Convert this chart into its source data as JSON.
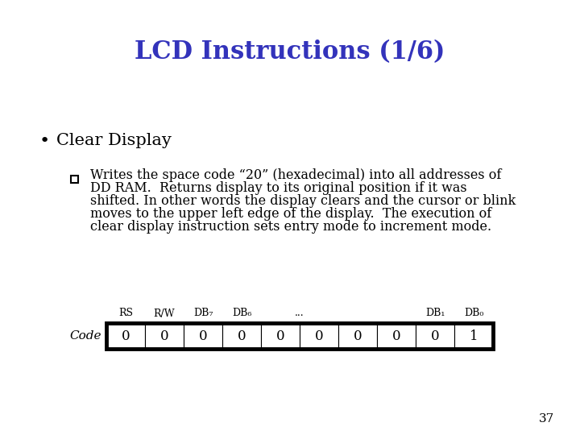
{
  "title": "LCD Instructions (1/6)",
  "title_color": "#3333BB",
  "title_fontsize": 22,
  "title_weight": "bold",
  "bullet_text": "Clear Display",
  "bullet_fontsize": 15,
  "body_lines": [
    "Writes the space code “20” (hexadecimal) into all addresses of",
    "DD RAM.  Returns display to its original position if it was",
    "shifted. In other words the display clears and the cursor or blink",
    "moves to the upper left edge of the display.  The execution of",
    "clear display instruction sets entry mode to increment mode."
  ],
  "body_fontsize": 11.5,
  "table_values": [
    "0",
    "0",
    "0",
    "0",
    "0",
    "0",
    "0",
    "0",
    "0",
    "1"
  ],
  "table_label": "Code",
  "header_labels": [
    "RS",
    "R/W",
    "DB₇",
    "DB₆",
    "...",
    "DB₁",
    "DB₀"
  ],
  "header_cols": [
    0,
    1,
    2,
    3,
    4.5,
    8,
    9
  ],
  "page_number": "37",
  "background_color": "#FFFFFF",
  "text_color": "#000000"
}
